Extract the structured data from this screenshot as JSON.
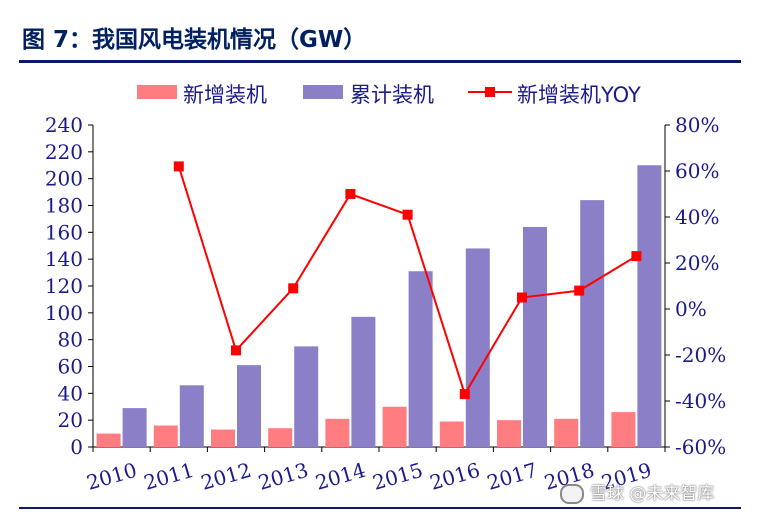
{
  "figure": {
    "title": "图 7：我国风电装机情况（GW）"
  },
  "watermark": {
    "text": "雪球 @未来智库"
  },
  "chart_data": {
    "type": "bar+line",
    "categories": [
      "2010",
      "2011",
      "2012",
      "2013",
      "2014",
      "2015",
      "2016",
      "2017",
      "2018",
      "2019"
    ],
    "series": [
      {
        "name": "新增装机",
        "type": "bar",
        "axis": "left",
        "color": "#ff7c80",
        "values": [
          10,
          16,
          13,
          14,
          21,
          30,
          19,
          20,
          21,
          26
        ]
      },
      {
        "name": "累计装机",
        "type": "bar",
        "axis": "left",
        "color": "#8b80c8",
        "values": [
          29,
          46,
          61,
          75,
          97,
          131,
          148,
          164,
          184,
          210
        ]
      },
      {
        "name": "新增装机YOY",
        "type": "line",
        "axis": "right",
        "color": "#ff0000",
        "values": [
          null,
          62,
          -18,
          9,
          50,
          41,
          -37,
          5,
          8,
          23
        ]
      }
    ],
    "y_left": {
      "ylim": [
        0,
        240
      ],
      "ticks": [
        0,
        20,
        40,
        60,
        80,
        100,
        120,
        140,
        160,
        180,
        200,
        220,
        240
      ]
    },
    "y_right": {
      "ylim": [
        -60,
        80
      ],
      "ticks": [
        "-60%",
        "-40%",
        "-20%",
        "0%",
        "20%",
        "40%",
        "60%",
        "80%"
      ],
      "tick_values": [
        -60,
        -40,
        -20,
        0,
        20,
        40,
        60,
        80
      ]
    },
    "grid": false,
    "legend_position": "top"
  }
}
